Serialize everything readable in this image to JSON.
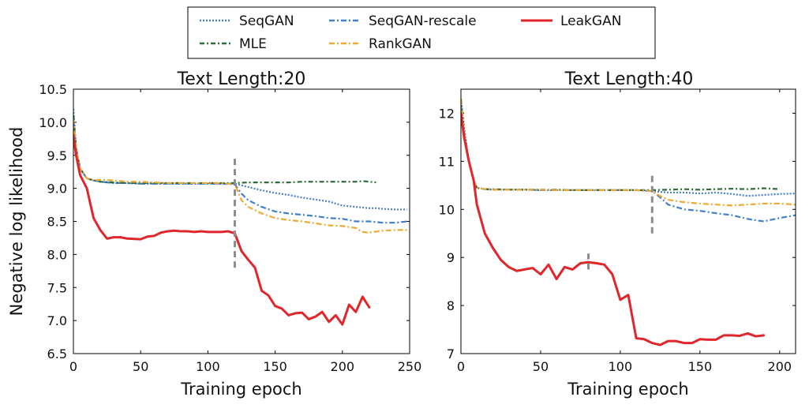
{
  "legend": {
    "items": [
      {
        "label": "SeqGAN",
        "series": "SeqGAN"
      },
      {
        "label": "SeqGAN-rescale",
        "series": "SeqGAN-rescale"
      },
      {
        "label": "LeakGAN",
        "series": "LeakGAN"
      },
      {
        "label": "MLE",
        "series": "MLE"
      },
      {
        "label": "RankGAN",
        "series": "RankGAN"
      }
    ]
  },
  "chart_data": [
    {
      "type": "line",
      "title": "Text Length:20",
      "xlabel": "Training epoch",
      "ylabel": "Negative log likelihood",
      "xlim": [
        0,
        250
      ],
      "ylim": [
        6.5,
        10.5
      ],
      "xticks": [
        "0",
        "50",
        "100",
        "150",
        "200",
        "250"
      ],
      "yticks": [
        "6.5",
        "7.0",
        "7.5",
        "8.0",
        "8.5",
        "9.0",
        "9.5",
        "10.0",
        "10.5"
      ],
      "grid": false,
      "vline": {
        "x": 120,
        "y_range": [
          7.8,
          9.5
        ]
      },
      "series": [
        {
          "name": "SeqGAN",
          "color": "#4a7fc1",
          "dash": "2,2",
          "x": [
            0,
            2,
            5,
            10,
            15,
            20,
            30,
            40,
            50,
            60,
            70,
            80,
            90,
            100,
            110,
            120,
            130,
            140,
            150,
            160,
            170,
            180,
            190,
            200,
            210,
            220,
            225,
            230,
            240,
            248
          ],
          "y": [
            10.2,
            9.6,
            9.3,
            9.15,
            9.12,
            9.1,
            9.08,
            9.08,
            9.07,
            9.07,
            9.07,
            9.07,
            9.07,
            9.07,
            9.07,
            9.07,
            9.02,
            8.97,
            8.93,
            8.9,
            8.86,
            8.83,
            8.8,
            8.74,
            8.72,
            8.7,
            8.7,
            8.69,
            8.68,
            8.68
          ]
        },
        {
          "name": "SeqGAN-rescale",
          "color": "#3f7fcf",
          "dash": "7,3,2,3",
          "x": [
            0,
            2,
            5,
            10,
            15,
            20,
            30,
            40,
            50,
            60,
            70,
            80,
            90,
            100,
            110,
            120,
            125,
            130,
            140,
            150,
            160,
            170,
            180,
            190,
            200,
            210,
            220,
            230,
            240,
            248
          ],
          "y": [
            10.1,
            9.6,
            9.3,
            9.15,
            9.12,
            9.1,
            9.08,
            9.08,
            9.07,
            9.07,
            9.07,
            9.07,
            9.07,
            9.07,
            9.07,
            9.06,
            8.92,
            8.82,
            8.72,
            8.65,
            8.62,
            8.6,
            8.58,
            8.55,
            8.54,
            8.5,
            8.5,
            8.48,
            8.48,
            8.5
          ]
        },
        {
          "name": "LeakGAN",
          "color": "#e0262b",
          "dash": "",
          "x": [
            0,
            2,
            5,
            10,
            15,
            20,
            25,
            30,
            35,
            40,
            50,
            55,
            60,
            65,
            70,
            75,
            80,
            85,
            90,
            95,
            100,
            105,
            110,
            115,
            120,
            125,
            130,
            135,
            140,
            145,
            150,
            155,
            160,
            165,
            170,
            175,
            180,
            185,
            190,
            195,
            200,
            205,
            210,
            215,
            220
          ],
          "y": [
            9.8,
            9.5,
            9.2,
            9.0,
            8.55,
            8.37,
            8.24,
            8.26,
            8.26,
            8.24,
            8.23,
            8.27,
            8.28,
            8.33,
            8.35,
            8.36,
            8.35,
            8.35,
            8.34,
            8.35,
            8.34,
            8.34,
            8.34,
            8.35,
            8.32,
            8.05,
            7.92,
            7.8,
            7.45,
            7.38,
            7.22,
            7.18,
            7.08,
            7.11,
            7.12,
            7.02,
            7.06,
            7.13,
            6.98,
            7.08,
            6.94,
            7.24,
            7.13,
            7.36,
            7.2
          ]
        },
        {
          "name": "MLE",
          "color": "#2f6d3b",
          "dash": "6,3,2,3",
          "x": [
            0,
            2,
            5,
            10,
            15,
            20,
            30,
            40,
            50,
            60,
            70,
            80,
            90,
            100,
            110,
            120,
            130,
            140,
            150,
            160,
            170,
            180,
            190,
            200,
            210,
            215,
            220,
            225
          ],
          "y": [
            10.1,
            9.6,
            9.3,
            9.15,
            9.12,
            9.1,
            9.09,
            9.08,
            9.08,
            9.08,
            9.08,
            9.08,
            9.08,
            9.08,
            9.08,
            9.08,
            9.09,
            9.09,
            9.09,
            9.09,
            9.1,
            9.1,
            9.1,
            9.1,
            9.1,
            9.11,
            9.1,
            9.09
          ]
        },
        {
          "name": "RankGAN",
          "color": "#f0a830",
          "dash": "7,3,2,3",
          "x": [
            0,
            2,
            5,
            10,
            15,
            20,
            30,
            40,
            50,
            60,
            70,
            80,
            90,
            100,
            110,
            120,
            125,
            130,
            140,
            150,
            160,
            170,
            180,
            190,
            200,
            210,
            215,
            220,
            230,
            240,
            248
          ],
          "y": [
            10.05,
            9.6,
            9.3,
            9.15,
            9.12,
            9.13,
            9.12,
            9.1,
            9.1,
            9.09,
            9.08,
            9.08,
            9.08,
            9.08,
            9.08,
            9.06,
            8.82,
            8.72,
            8.62,
            8.55,
            8.52,
            8.5,
            8.47,
            8.44,
            8.43,
            8.4,
            8.34,
            8.33,
            8.36,
            8.37,
            8.37
          ]
        }
      ]
    },
    {
      "type": "line",
      "title": "Text Length:40",
      "xlabel": "Training epoch",
      "ylabel": "",
      "xlim": [
        0,
        210
      ],
      "ylim": [
        7,
        12.5
      ],
      "xticks": [
        "0",
        "50",
        "100",
        "150",
        "200"
      ],
      "yticks": [
        "7",
        "8",
        "9",
        "10",
        "11",
        "12"
      ],
      "grid": false,
      "vlines": [
        {
          "x": 120,
          "y_range": [
            9.5,
            10.75
          ]
        },
        {
          "x": 80,
          "y_range": [
            8.75,
            9.08
          ]
        }
      ],
      "series": [
        {
          "name": "SeqGAN",
          "color": "#4a7fc1",
          "dash": "2,2",
          "x": [
            0,
            2,
            5,
            8,
            10,
            15,
            20,
            30,
            40,
            50,
            60,
            70,
            80,
            90,
            100,
            110,
            120,
            130,
            140,
            150,
            160,
            170,
            180,
            190,
            200,
            210
          ],
          "y": [
            12.3,
            11.7,
            11.0,
            10.6,
            10.45,
            10.42,
            10.41,
            10.41,
            10.41,
            10.4,
            10.4,
            10.4,
            10.4,
            10.4,
            10.4,
            10.4,
            10.38,
            10.35,
            10.35,
            10.33,
            10.35,
            10.32,
            10.28,
            10.3,
            10.32,
            10.33
          ]
        },
        {
          "name": "SeqGAN-rescale",
          "color": "#3f7fcf",
          "dash": "7,3,2,3",
          "x": [
            0,
            2,
            5,
            8,
            10,
            15,
            20,
            30,
            40,
            50,
            60,
            70,
            80,
            90,
            100,
            110,
            120,
            125,
            130,
            140,
            150,
            160,
            170,
            180,
            190,
            200,
            210
          ],
          "y": [
            12.3,
            11.6,
            11.0,
            10.6,
            10.45,
            10.42,
            10.41,
            10.41,
            10.41,
            10.4,
            10.4,
            10.4,
            10.4,
            10.4,
            10.4,
            10.4,
            10.38,
            10.25,
            10.1,
            10.0,
            9.97,
            9.92,
            9.88,
            9.8,
            9.75,
            9.82,
            9.88
          ]
        },
        {
          "name": "LeakGAN",
          "color": "#e0262b",
          "dash": "",
          "x": [
            0,
            2,
            5,
            8,
            10,
            15,
            20,
            25,
            30,
            35,
            40,
            45,
            50,
            55,
            60,
            65,
            70,
            75,
            80,
            85,
            90,
            95,
            100,
            105,
            110,
            115,
            120,
            125,
            130,
            135,
            140,
            145,
            150,
            155,
            160,
            165,
            170,
            175,
            180,
            185,
            190
          ],
          "y": [
            12.0,
            11.5,
            11.0,
            10.6,
            10.1,
            9.5,
            9.2,
            8.95,
            8.8,
            8.72,
            8.75,
            8.78,
            8.65,
            8.85,
            8.55,
            8.8,
            8.75,
            8.88,
            8.9,
            8.88,
            8.85,
            8.65,
            8.12,
            8.22,
            7.32,
            7.3,
            7.22,
            7.18,
            7.26,
            7.26,
            7.22,
            7.22,
            7.3,
            7.29,
            7.29,
            7.38,
            7.38,
            7.37,
            7.42,
            7.36,
            7.38
          ]
        },
        {
          "name": "MLE",
          "color": "#2f6d3b",
          "dash": "6,3,2,3",
          "x": [
            0,
            2,
            5,
            8,
            10,
            15,
            20,
            30,
            40,
            50,
            60,
            70,
            80,
            90,
            100,
            110,
            120,
            130,
            140,
            150,
            160,
            170,
            180,
            190,
            200
          ],
          "y": [
            12.3,
            11.6,
            11.0,
            10.6,
            10.45,
            10.42,
            10.42,
            10.41,
            10.41,
            10.41,
            10.41,
            10.4,
            10.4,
            10.4,
            10.4,
            10.4,
            10.4,
            10.41,
            10.42,
            10.41,
            10.42,
            10.43,
            10.42,
            10.44,
            10.42
          ]
        },
        {
          "name": "RankGAN",
          "color": "#f0a830",
          "dash": "7,3,2,3",
          "x": [
            0,
            2,
            5,
            8,
            10,
            15,
            20,
            30,
            40,
            50,
            60,
            70,
            80,
            90,
            100,
            110,
            120,
            125,
            130,
            140,
            150,
            160,
            170,
            180,
            190,
            200,
            210
          ],
          "y": [
            12.3,
            11.6,
            11.0,
            10.6,
            10.45,
            10.42,
            10.41,
            10.41,
            10.41,
            10.41,
            10.4,
            10.4,
            10.4,
            10.4,
            10.4,
            10.4,
            10.38,
            10.28,
            10.2,
            10.15,
            10.12,
            10.1,
            10.08,
            10.1,
            10.12,
            10.12,
            10.1
          ]
        }
      ]
    }
  ]
}
